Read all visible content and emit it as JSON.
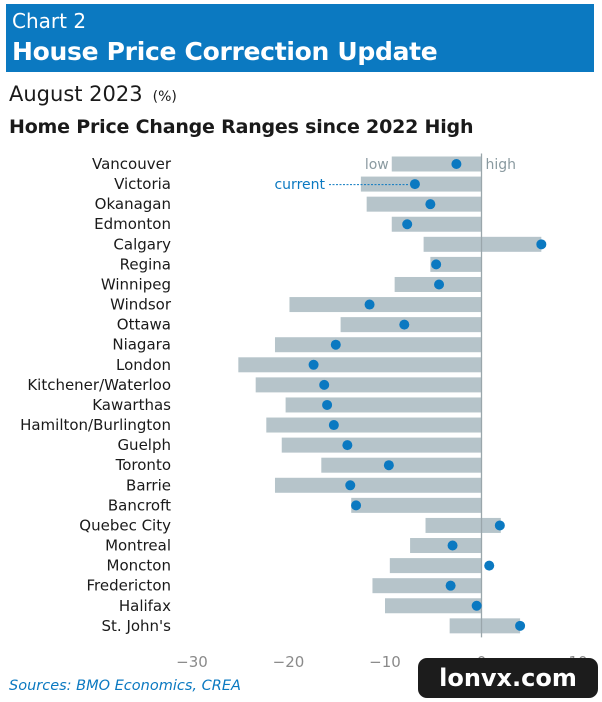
{
  "header": {
    "chart_number": "Chart 2",
    "title": "House Price Correction Update"
  },
  "date": "August 2023",
  "unit": "(%)",
  "subtitle": "Home Price Change Ranges since 2022 High",
  "sources": "Sources: BMO Economics, CREA",
  "watermark": "lonvx.com",
  "colors": {
    "header": "#0b79c1",
    "bar": "#b6c4ca",
    "dot": "#0b79c1"
  },
  "chart_data": {
    "type": "range-dot",
    "title": "Home Price Change Ranges since 2022 High",
    "xlabel": "",
    "ylabel": "",
    "xlim": [
      -30,
      10
    ],
    "xticks": [
      -30,
      -20,
      -10,
      0,
      10
    ],
    "grid": false,
    "legend_labels": {
      "low": "low",
      "high": "high",
      "current": "current"
    },
    "categories": [
      "Vancouver",
      "Victoria",
      "Okanagan",
      "Edmonton",
      "Calgary",
      "Regina",
      "Winnipeg",
      "Windsor",
      "Ottawa",
      "Niagara",
      "London",
      "Kitchener/Waterloo",
      "Kawarthas",
      "Hamilton/Burlington",
      "Guelph",
      "Toronto",
      "Barrie",
      "Bancroft",
      "Quebec City",
      "Montreal",
      "Moncton",
      "Fredericton",
      "Halifax",
      "St. John's"
    ],
    "low": [
      -9.3,
      -12.5,
      -11.9,
      -9.3,
      -6.0,
      -5.3,
      -9.0,
      -19.9,
      -14.6,
      -21.4,
      -25.2,
      -23.4,
      -20.3,
      -22.3,
      -20.7,
      -16.6,
      -21.4,
      -13.5,
      -5.8,
      -7.4,
      -9.5,
      -11.3,
      -10.0,
      -3.3
    ],
    "high": [
      0,
      0,
      0,
      0,
      6.2,
      0,
      0,
      0,
      0,
      0,
      0,
      0,
      0,
      0,
      0,
      0,
      0,
      0,
      2.0,
      0,
      0,
      0,
      0,
      4.0
    ],
    "current": [
      -2.6,
      -6.9,
      -5.3,
      -7.7,
      6.2,
      -4.7,
      -4.4,
      -11.6,
      -8.0,
      -15.1,
      -17.4,
      -16.3,
      -16.0,
      -15.3,
      -13.9,
      -9.6,
      -13.6,
      -13.0,
      1.9,
      -3.0,
      0.8,
      -3.2,
      -0.5,
      4.0
    ]
  }
}
